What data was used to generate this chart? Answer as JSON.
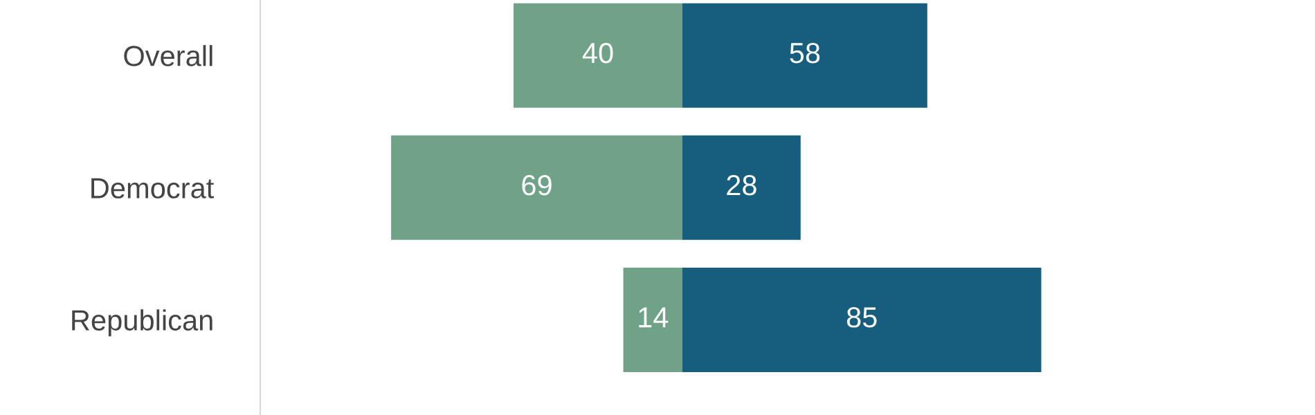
{
  "chart_data": [
    {
      "type": "bar",
      "orientation": "horizontal",
      "categories": [
        "Overall",
        "Democrat",
        "Republican"
      ],
      "series": [
        {
          "color": "#6fa287",
          "values": [
            40,
            69,
            14
          ]
        }
      ],
      "xlim": [
        100,
        0
      ],
      "tick_labels": "y",
      "data_labels": true
    },
    {
      "type": "bar",
      "orientation": "horizontal",
      "categories": [
        null,
        null,
        null
      ],
      "series": [
        {
          "color": "#175e7e",
          "values": [
            58,
            28,
            85
          ]
        }
      ],
      "tick_labels": false,
      "data_labels": true
    }
  ]
}
